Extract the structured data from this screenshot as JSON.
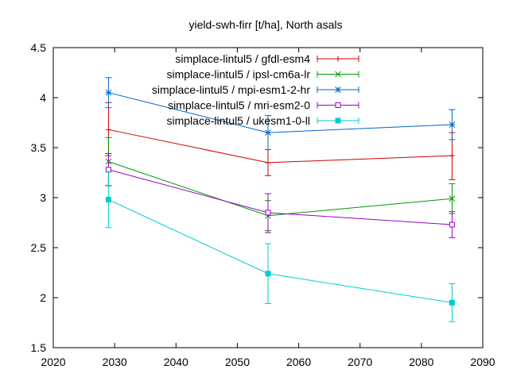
{
  "chart_data": {
    "type": "line",
    "title": "yield-swh-firr [t/ha], North asals",
    "xlabel": "",
    "ylabel": "",
    "xlim": [
      2020,
      2090
    ],
    "ylim": [
      1.5,
      4.5
    ],
    "xticks": [
      2020,
      2030,
      2040,
      2050,
      2060,
      2070,
      2080,
      2090
    ],
    "yticks": [
      1.5,
      2,
      2.5,
      3,
      3.5,
      4,
      4.5
    ],
    "ytick_labels": [
      "1.5",
      "2",
      "2.5",
      "3",
      "3.5",
      "4",
      "4.5"
    ],
    "grid": false,
    "legend_position": "top-right",
    "x": [
      2029,
      2055,
      2085
    ],
    "series": [
      {
        "name": "simplace-lintul5 / gfdl-esm4",
        "color": "#cc0000",
        "marker": "plus",
        "values": [
          3.68,
          3.35,
          3.42
        ],
        "errors": [
          [
            3.42,
            3.95
          ],
          [
            3.22,
            3.48
          ],
          [
            3.18,
            3.65
          ]
        ]
      },
      {
        "name": "simplace-lintul5 / ipsl-cm6a-lr",
        "color": "#009900",
        "marker": "cross",
        "values": [
          3.36,
          2.82,
          2.99
        ],
        "errors": [
          [
            3.12,
            3.6
          ],
          [
            2.67,
            2.97
          ],
          [
            2.84,
            3.14
          ]
        ]
      },
      {
        "name": "simplace-lintul5 / mpi-esm1-2-hr",
        "color": "#0066cc",
        "marker": "star",
        "values": [
          4.05,
          3.65,
          3.73
        ],
        "errors": [
          [
            3.9,
            4.2
          ],
          [
            3.48,
            3.82
          ],
          [
            3.58,
            3.88
          ]
        ]
      },
      {
        "name": "simplace-lintul5 / mri-esm2-0",
        "color": "#9900cc",
        "marker": "open-square",
        "values": [
          3.28,
          2.85,
          2.73
        ],
        "errors": [
          [
            3.12,
            3.44
          ],
          [
            2.65,
            3.04
          ],
          [
            2.6,
            2.86
          ]
        ]
      },
      {
        "name": "simplace-lintul5 / ukesm1-0-ll",
        "color": "#00cccc",
        "marker": "filled-square",
        "values": [
          2.98,
          2.24,
          1.95
        ],
        "errors": [
          [
            2.7,
            3.26
          ],
          [
            1.94,
            2.54
          ],
          [
            1.76,
            2.14
          ]
        ]
      }
    ]
  }
}
